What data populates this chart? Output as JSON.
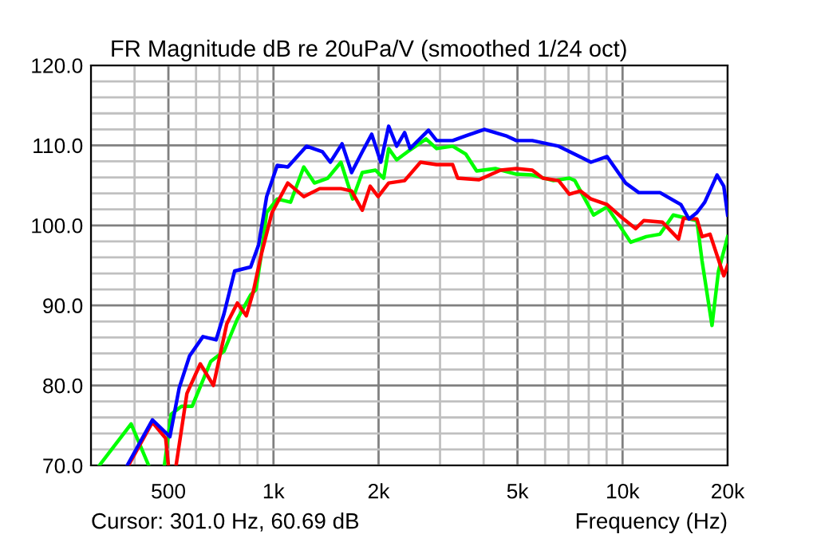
{
  "chart_data": {
    "type": "line",
    "title": "FR Magnitude dB re 20uPa/V (smoothed 1/24 oct)",
    "xlabel": "Frequency (Hz)",
    "annotations": [
      "Cursor: 301.0 Hz, 60.69 dB"
    ],
    "log": "x",
    "grid": true,
    "marker": "none",
    "line_style": "solid",
    "xlim": [
      300,
      20000
    ],
    "ylim": [
      70,
      120
    ],
    "xticks": [
      {
        "value": 300,
        "label": null
      },
      {
        "value": 400,
        "label": null
      },
      500,
      {
        "value": 600,
        "label": null
      },
      {
        "value": 700,
        "label": null
      },
      {
        "value": 800,
        "label": null
      },
      {
        "value": 900,
        "label": null
      },
      {
        "value": 1000,
        "label": "1k"
      },
      {
        "value": 2000,
        "label": "2k"
      },
      {
        "value": 3000,
        "label": null
      },
      {
        "value": 4000,
        "label": null
      },
      {
        "value": 5000,
        "label": "5k"
      },
      {
        "value": 6000,
        "label": null
      },
      {
        "value": 7000,
        "label": null
      },
      {
        "value": 8000,
        "label": null
      },
      {
        "value": 9000,
        "label": null
      },
      {
        "value": 10000,
        "label": "10k"
      },
      {
        "value": 20000,
        "label": "20k"
      }
    ],
    "yticks": [
      {
        "value": 70,
        "label": "70.0"
      },
      {
        "value": 72,
        "label": null
      },
      {
        "value": 74,
        "label": null
      },
      {
        "value": 76,
        "label": null
      },
      {
        "value": 78,
        "label": null
      },
      {
        "value": 80,
        "label": "80.0"
      },
      {
        "value": 82,
        "label": null
      },
      {
        "value": 84,
        "label": null
      },
      {
        "value": 86,
        "label": null
      },
      {
        "value": 88,
        "label": null
      },
      {
        "value": 90,
        "label": "90.0"
      },
      {
        "value": 92,
        "label": null
      },
      {
        "value": 94,
        "label": null
      },
      {
        "value": 96,
        "label": null
      },
      {
        "value": 98,
        "label": null
      },
      {
        "value": 100,
        "label": "100.0"
      },
      {
        "value": 102,
        "label": null
      },
      {
        "value": 104,
        "label": null
      },
      {
        "value": 106,
        "label": null
      },
      {
        "value": 108,
        "label": null
      },
      {
        "value": 110,
        "label": "110.0"
      },
      {
        "value": 112,
        "label": null
      },
      {
        "value": 114,
        "label": null
      },
      {
        "value": 116,
        "label": null
      },
      {
        "value": 118,
        "label": null
      },
      {
        "value": 120,
        "label": "120.0"
      }
    ],
    "series": [
      {
        "color": "#00ff00",
        "x": [
          317,
          391,
          439,
          460,
          487,
          509,
          545,
          585,
          661,
          722,
          788,
          860,
          891,
          922,
          956,
          1025,
          1119,
          1221,
          1310,
          1430,
          1560,
          1686,
          1796,
          1960,
          2068,
          2138,
          2254,
          2420,
          2736,
          2933,
          3260,
          3557,
          3820,
          4320,
          4966,
          5515,
          6340,
          7040,
          7300,
          8260,
          9030,
          10550,
          11700,
          12800,
          13970,
          15240,
          16330,
          16890,
          18040,
          18830,
          20000
        ],
        "values": [
          70,
          75.2,
          70,
          null,
          70,
          76.4,
          77.4,
          77.4,
          83.0,
          84.3,
          88.3,
          91.3,
          92.0,
          96.3,
          101.6,
          103.3,
          102.9,
          107.3,
          105.3,
          105.9,
          107.9,
          103.3,
          106.6,
          106.9,
          105.9,
          109.6,
          108.2,
          109.2,
          110.8,
          109.6,
          109.9,
          108.9,
          106.8,
          107.1,
          106.4,
          106.3,
          105.6,
          105.9,
          105.6,
          101.3,
          102.3,
          97.9,
          98.6,
          98.9,
          101.3,
          100.9,
          100.6,
          95.6,
          87.5,
          94.3,
          98.6
        ]
      },
      {
        "color": "#ff0000",
        "x": [
          384,
          450,
          491,
          500,
          515,
          526,
          565,
          617,
          673,
          735,
          788,
          836,
          875,
          922,
          990,
          1099,
          1221,
          1357,
          1560,
          1674,
          1796,
          1892,
          1995,
          2138,
          2375,
          2637,
          2933,
          3260,
          3370,
          3880,
          4470,
          4966,
          5515,
          5910,
          6560,
          7040,
          7570,
          8120,
          9030,
          10000,
          10900,
          11500,
          13010,
          14470,
          14950,
          16330,
          16900,
          17810,
          19500,
          20000
        ],
        "values": [
          70,
          75.4,
          73.4,
          70,
          null,
          70,
          79.0,
          82.7,
          80.0,
          87.7,
          90.3,
          88.7,
          91.7,
          96.3,
          101.6,
          105.3,
          103.6,
          104.6,
          104.6,
          104.3,
          101.9,
          104.9,
          103.6,
          105.3,
          105.6,
          107.9,
          107.6,
          107.6,
          105.9,
          105.7,
          106.9,
          107.1,
          106.9,
          105.9,
          105.6,
          103.9,
          104.3,
          103.3,
          102.6,
          100.9,
          99.6,
          100.6,
          100.4,
          98.3,
          100.9,
          100.8,
          98.6,
          98.9,
          93.7,
          95.0
        ]
      },
      {
        "color": "#0000ff",
        "x": [
          381,
          450,
          505,
          537,
          575,
          628,
          685,
          722,
          774,
          860,
          907,
          956,
          1025,
          1099,
          1243,
          1381,
          1455,
          1572,
          1674,
          1796,
          1912,
          2030,
          2138,
          2254,
          2375,
          2462,
          2780,
          2933,
          3260,
          3557,
          4021,
          4632,
          4966,
          5515,
          6560,
          7300,
          8120,
          9030,
          10200,
          11130,
          12800,
          14690,
          15500,
          16330,
          17200,
          18650,
          19500,
          20000
        ],
        "values": [
          70,
          75.7,
          73.6,
          79.7,
          83.7,
          86.1,
          85.7,
          89.0,
          94.3,
          94.8,
          97.6,
          103.6,
          107.5,
          107.3,
          109.9,
          109.2,
          107.9,
          110.2,
          106.6,
          109.2,
          111.4,
          107.9,
          112.4,
          109.9,
          111.6,
          109.6,
          111.9,
          110.6,
          110.6,
          111.2,
          112.0,
          111.2,
          110.6,
          110.6,
          109.9,
          108.9,
          107.9,
          108.6,
          105.3,
          104.1,
          104.1,
          102.6,
          100.8,
          101.6,
          102.9,
          106.3,
          104.9,
          101.3
        ]
      }
    ]
  }
}
